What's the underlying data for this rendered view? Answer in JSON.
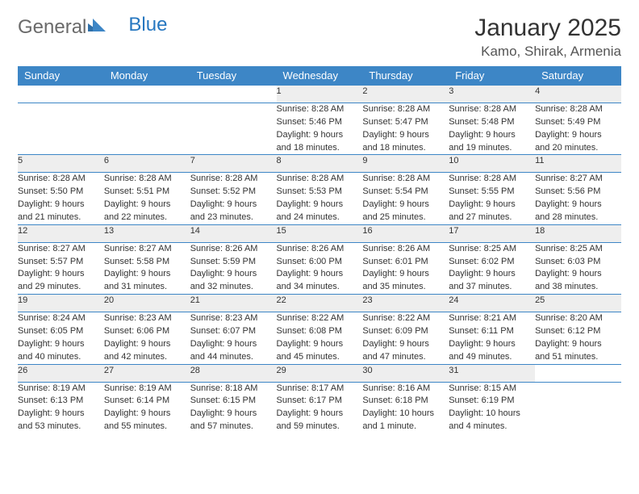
{
  "brand": {
    "part1": "General",
    "part2": "Blue"
  },
  "title": "January 2025",
  "location": "Kamo, Shirak, Armenia",
  "colors": {
    "header_bg": "#3d86c6",
    "header_fg": "#ffffff",
    "daynum_bg": "#eeeeee",
    "rule": "#3d86c6",
    "brand_gray": "#6a6a6a",
    "brand_blue": "#2677c0"
  },
  "weekdays": [
    "Sunday",
    "Monday",
    "Tuesday",
    "Wednesday",
    "Thursday",
    "Friday",
    "Saturday"
  ],
  "weeks": [
    [
      null,
      null,
      null,
      {
        "n": "1",
        "sr": "8:28 AM",
        "ss": "5:46 PM",
        "dl1": "Daylight: 9 hours",
        "dl2": "and 18 minutes."
      },
      {
        "n": "2",
        "sr": "8:28 AM",
        "ss": "5:47 PM",
        "dl1": "Daylight: 9 hours",
        "dl2": "and 18 minutes."
      },
      {
        "n": "3",
        "sr": "8:28 AM",
        "ss": "5:48 PM",
        "dl1": "Daylight: 9 hours",
        "dl2": "and 19 minutes."
      },
      {
        "n": "4",
        "sr": "8:28 AM",
        "ss": "5:49 PM",
        "dl1": "Daylight: 9 hours",
        "dl2": "and 20 minutes."
      }
    ],
    [
      {
        "n": "5",
        "sr": "8:28 AM",
        "ss": "5:50 PM",
        "dl1": "Daylight: 9 hours",
        "dl2": "and 21 minutes."
      },
      {
        "n": "6",
        "sr": "8:28 AM",
        "ss": "5:51 PM",
        "dl1": "Daylight: 9 hours",
        "dl2": "and 22 minutes."
      },
      {
        "n": "7",
        "sr": "8:28 AM",
        "ss": "5:52 PM",
        "dl1": "Daylight: 9 hours",
        "dl2": "and 23 minutes."
      },
      {
        "n": "8",
        "sr": "8:28 AM",
        "ss": "5:53 PM",
        "dl1": "Daylight: 9 hours",
        "dl2": "and 24 minutes."
      },
      {
        "n": "9",
        "sr": "8:28 AM",
        "ss": "5:54 PM",
        "dl1": "Daylight: 9 hours",
        "dl2": "and 25 minutes."
      },
      {
        "n": "10",
        "sr": "8:28 AM",
        "ss": "5:55 PM",
        "dl1": "Daylight: 9 hours",
        "dl2": "and 27 minutes."
      },
      {
        "n": "11",
        "sr": "8:27 AM",
        "ss": "5:56 PM",
        "dl1": "Daylight: 9 hours",
        "dl2": "and 28 minutes."
      }
    ],
    [
      {
        "n": "12",
        "sr": "8:27 AM",
        "ss": "5:57 PM",
        "dl1": "Daylight: 9 hours",
        "dl2": "and 29 minutes."
      },
      {
        "n": "13",
        "sr": "8:27 AM",
        "ss": "5:58 PM",
        "dl1": "Daylight: 9 hours",
        "dl2": "and 31 minutes."
      },
      {
        "n": "14",
        "sr": "8:26 AM",
        "ss": "5:59 PM",
        "dl1": "Daylight: 9 hours",
        "dl2": "and 32 minutes."
      },
      {
        "n": "15",
        "sr": "8:26 AM",
        "ss": "6:00 PM",
        "dl1": "Daylight: 9 hours",
        "dl2": "and 34 minutes."
      },
      {
        "n": "16",
        "sr": "8:26 AM",
        "ss": "6:01 PM",
        "dl1": "Daylight: 9 hours",
        "dl2": "and 35 minutes."
      },
      {
        "n": "17",
        "sr": "8:25 AM",
        "ss": "6:02 PM",
        "dl1": "Daylight: 9 hours",
        "dl2": "and 37 minutes."
      },
      {
        "n": "18",
        "sr": "8:25 AM",
        "ss": "6:03 PM",
        "dl1": "Daylight: 9 hours",
        "dl2": "and 38 minutes."
      }
    ],
    [
      {
        "n": "19",
        "sr": "8:24 AM",
        "ss": "6:05 PM",
        "dl1": "Daylight: 9 hours",
        "dl2": "and 40 minutes."
      },
      {
        "n": "20",
        "sr": "8:23 AM",
        "ss": "6:06 PM",
        "dl1": "Daylight: 9 hours",
        "dl2": "and 42 minutes."
      },
      {
        "n": "21",
        "sr": "8:23 AM",
        "ss": "6:07 PM",
        "dl1": "Daylight: 9 hours",
        "dl2": "and 44 minutes."
      },
      {
        "n": "22",
        "sr": "8:22 AM",
        "ss": "6:08 PM",
        "dl1": "Daylight: 9 hours",
        "dl2": "and 45 minutes."
      },
      {
        "n": "23",
        "sr": "8:22 AM",
        "ss": "6:09 PM",
        "dl1": "Daylight: 9 hours",
        "dl2": "and 47 minutes."
      },
      {
        "n": "24",
        "sr": "8:21 AM",
        "ss": "6:11 PM",
        "dl1": "Daylight: 9 hours",
        "dl2": "and 49 minutes."
      },
      {
        "n": "25",
        "sr": "8:20 AM",
        "ss": "6:12 PM",
        "dl1": "Daylight: 9 hours",
        "dl2": "and 51 minutes."
      }
    ],
    [
      {
        "n": "26",
        "sr": "8:19 AM",
        "ss": "6:13 PM",
        "dl1": "Daylight: 9 hours",
        "dl2": "and 53 minutes."
      },
      {
        "n": "27",
        "sr": "8:19 AM",
        "ss": "6:14 PM",
        "dl1": "Daylight: 9 hours",
        "dl2": "and 55 minutes."
      },
      {
        "n": "28",
        "sr": "8:18 AM",
        "ss": "6:15 PM",
        "dl1": "Daylight: 9 hours",
        "dl2": "and 57 minutes."
      },
      {
        "n": "29",
        "sr": "8:17 AM",
        "ss": "6:17 PM",
        "dl1": "Daylight: 9 hours",
        "dl2": "and 59 minutes."
      },
      {
        "n": "30",
        "sr": "8:16 AM",
        "ss": "6:18 PM",
        "dl1": "Daylight: 10 hours",
        "dl2": "and 1 minute."
      },
      {
        "n": "31",
        "sr": "8:15 AM",
        "ss": "6:19 PM",
        "dl1": "Daylight: 10 hours",
        "dl2": "and 4 minutes."
      },
      null
    ]
  ]
}
